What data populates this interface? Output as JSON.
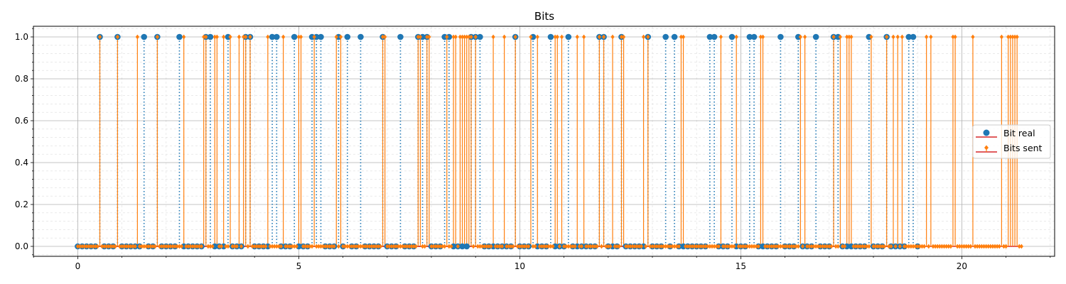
{
  "chart_data": {
    "type": "stem",
    "title": "Bits",
    "xlabel": "",
    "ylabel": "",
    "xlim": [
      -1.0,
      22.2
    ],
    "ylim": [
      -0.05,
      1.05
    ],
    "x_ticks": [
      0,
      5,
      10,
      15,
      20
    ],
    "x_tick_labels": [
      "0",
      "5",
      "10",
      "15",
      "20"
    ],
    "y_ticks": [
      0.0,
      0.2,
      0.4,
      0.6,
      0.8,
      1.0
    ],
    "y_tick_labels": [
      "0.0",
      "0.2",
      "0.4",
      "0.6",
      "0.8",
      "1.0"
    ],
    "grid": true,
    "minor_grid": true,
    "legend": "right",
    "series": [
      {
        "name": "Bit real",
        "color": "#1f77b4",
        "baseline_color": "#d62728",
        "marker": "circle",
        "stem_style": "dotted",
        "x_start": 0.0,
        "x_step": 0.1,
        "values": [
          0,
          0,
          0,
          0,
          0,
          1,
          0,
          0,
          0,
          1,
          0,
          0,
          0,
          0,
          0,
          1,
          0,
          0,
          1,
          0,
          0,
          0,
          0,
          1,
          0,
          0,
          0,
          0,
          0,
          1,
          1,
          0,
          0,
          0,
          1,
          0,
          0,
          0,
          1,
          1,
          0,
          0,
          0,
          0,
          1,
          1,
          0,
          0,
          0,
          1,
          0,
          0,
          0,
          1,
          1,
          1,
          0,
          0,
          0,
          1,
          0,
          1,
          0,
          0,
          1,
          0,
          0,
          0,
          0,
          1,
          0,
          0,
          0,
          1,
          0,
          0,
          0,
          1,
          1,
          1,
          0,
          0,
          0,
          1,
          1,
          0,
          0,
          0,
          0,
          1,
          1,
          1,
          0,
          0,
          0,
          0,
          0,
          0,
          0,
          1,
          0,
          0,
          0,
          1,
          0,
          0,
          0,
          1,
          0,
          0,
          0,
          1,
          0,
          0,
          0,
          0,
          0,
          0,
          1,
          1,
          0,
          0,
          0,
          1,
          0,
          0,
          0,
          0,
          0,
          1,
          0,
          0,
          0,
          1,
          0,
          1,
          0,
          0,
          0,
          0,
          0,
          0,
          0,
          1,
          1,
          0,
          0,
          0,
          1,
          0,
          0,
          0,
          1,
          1,
          0,
          0,
          0,
          0,
          0,
          1,
          0,
          0,
          0,
          1,
          0,
          0,
          0,
          1,
          0,
          0,
          0,
          1,
          1,
          0,
          0,
          0,
          0,
          0,
          0,
          1,
          0,
          0,
          0,
          1,
          0,
          0,
          0,
          0,
          1,
          1,
          0
        ]
      },
      {
        "name": "Bits sent",
        "color": "#ff7f0e",
        "baseline_color": "#d62728",
        "marker": "diamond",
        "stem_style": "solid",
        "x_start": 0.0,
        "x_step": 0.05,
        "values": [
          0,
          0,
          0,
          0,
          0,
          0,
          0,
          0,
          0,
          0,
          1,
          0,
          0,
          0,
          0,
          0,
          0,
          0,
          1,
          0,
          0,
          0,
          0,
          0,
          0,
          0,
          0,
          1,
          0,
          0,
          0,
          0,
          0,
          0,
          0,
          0,
          1,
          0,
          0,
          0,
          0,
          0,
          0,
          0,
          0,
          0,
          0,
          0,
          1,
          0,
          0,
          0,
          0,
          0,
          0,
          0,
          0,
          1,
          1,
          0,
          0,
          0,
          1,
          1,
          0,
          0,
          1,
          0,
          0,
          1,
          0,
          0,
          0,
          1,
          0,
          1,
          1,
          0,
          1,
          0,
          0,
          0,
          0,
          0,
          0,
          0,
          1,
          0,
          0,
          0,
          0,
          0,
          0,
          1,
          0,
          0,
          0,
          0,
          0,
          0,
          1,
          1,
          0,
          0,
          0,
          0,
          0,
          1,
          0,
          0,
          0,
          0,
          0,
          0,
          0,
          0,
          0,
          1,
          0,
          1,
          0,
          0,
          0,
          0,
          0,
          0,
          0,
          0,
          0,
          0,
          0,
          0,
          0,
          0,
          0,
          0,
          0,
          0,
          1,
          1,
          0,
          0,
          0,
          0,
          0,
          0,
          0,
          0,
          0,
          0,
          0,
          0,
          0,
          0,
          1,
          1,
          0,
          0,
          1,
          1,
          0,
          0,
          0,
          0,
          0,
          0,
          0,
          1,
          0,
          0,
          1,
          1,
          0,
          1,
          1,
          1,
          1,
          1,
          1,
          0,
          1,
          0,
          0,
          0,
          0,
          0,
          0,
          0,
          1,
          0,
          0,
          0,
          0,
          1,
          0,
          0,
          0,
          0,
          1,
          0,
          0,
          0,
          0,
          0,
          0,
          1,
          0,
          0,
          1,
          0,
          0,
          0,
          0,
          0,
          0,
          0,
          1,
          1,
          0,
          1,
          0,
          0,
          0,
          0,
          0,
          0,
          1,
          0,
          0,
          1,
          0,
          0,
          0,
          0,
          0,
          0,
          1,
          0,
          1,
          0,
          0,
          0,
          1,
          0,
          0,
          0,
          1,
          1,
          0,
          0,
          0,
          0,
          0,
          0,
          0,
          0,
          1,
          0,
          1,
          0,
          0,
          0,
          0,
          0,
          0,
          0,
          0,
          0,
          0,
          0,
          0,
          0,
          0,
          1,
          1,
          0,
          0,
          0,
          0,
          0,
          0,
          0,
          0,
          0,
          0,
          0,
          0,
          0,
          0,
          0,
          0,
          1,
          0,
          0,
          0,
          0,
          0,
          0,
          1,
          0,
          0,
          0,
          0,
          0,
          0,
          0,
          0,
          0,
          0,
          1,
          1,
          0,
          0,
          0,
          0,
          0,
          0,
          0,
          0,
          0,
          0,
          0,
          0,
          0,
          0,
          0,
          0,
          1,
          0,
          1,
          0,
          0,
          0,
          0,
          0,
          0,
          0,
          0,
          0,
          0,
          0,
          0,
          1,
          0,
          0,
          1,
          0,
          0,
          1,
          1,
          1,
          0,
          0,
          0,
          0,
          0,
          0,
          0,
          0,
          1,
          0,
          0,
          0,
          0,
          0,
          0,
          1,
          0,
          0,
          1,
          0,
          1,
          0,
          1,
          0,
          0,
          0,
          0,
          0,
          0,
          0,
          0,
          0,
          0,
          1,
          0,
          1,
          0,
          0,
          0,
          0,
          0,
          0,
          0,
          0,
          0,
          1,
          1,
          0,
          0,
          0,
          0,
          0,
          0,
          0,
          1,
          0,
          0,
          0,
          0,
          0,
          0,
          0,
          0,
          0,
          0,
          0,
          0,
          1,
          0,
          0,
          1,
          1,
          1,
          1,
          1,
          0,
          0
        ]
      }
    ]
  }
}
